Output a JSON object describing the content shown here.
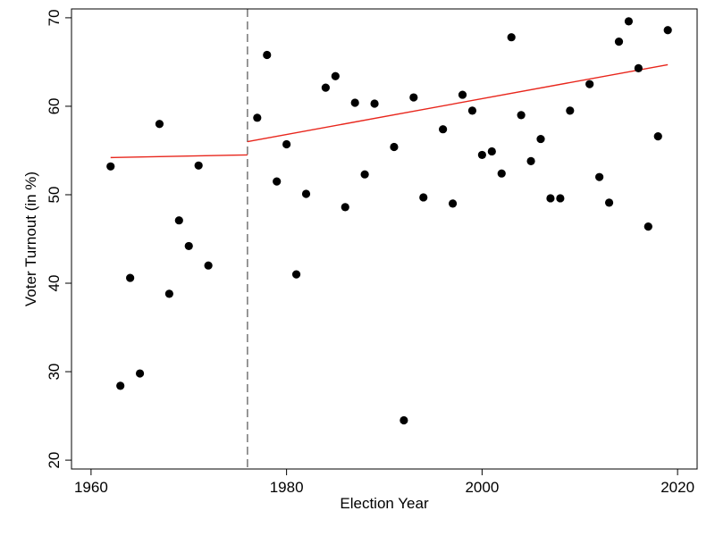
{
  "chart_data": {
    "type": "scatter",
    "title": "",
    "xlabel": "Election Year",
    "ylabel": "Voter Turnout (in %)",
    "xlim": [
      1958,
      2022
    ],
    "ylim": [
      19,
      71
    ],
    "xticks": [
      1960,
      1980,
      2000,
      2020
    ],
    "yticks": [
      20,
      30,
      40,
      50,
      60,
      70
    ],
    "grid": false,
    "legend": "none",
    "cutoff_year": 1976,
    "colors": {
      "points": "#000000",
      "fit": "#e8261c",
      "cutoff": "#7f7f7f",
      "frame": "#000000"
    },
    "points": [
      {
        "x": 1962,
        "y": 53.2
      },
      {
        "x": 1963,
        "y": 28.4
      },
      {
        "x": 1964,
        "y": 40.6
      },
      {
        "x": 1965,
        "y": 29.8
      },
      {
        "x": 1967,
        "y": 58.0
      },
      {
        "x": 1968,
        "y": 38.8
      },
      {
        "x": 1969,
        "y": 47.1
      },
      {
        "x": 1970,
        "y": 44.2
      },
      {
        "x": 1971,
        "y": 53.3
      },
      {
        "x": 1972,
        "y": 42.0
      },
      {
        "x": 1977,
        "y": 58.7
      },
      {
        "x": 1978,
        "y": 65.8
      },
      {
        "x": 1979,
        "y": 51.5
      },
      {
        "x": 1980,
        "y": 55.7
      },
      {
        "x": 1981,
        "y": 41.0
      },
      {
        "x": 1982,
        "y": 50.1
      },
      {
        "x": 1984,
        "y": 62.1
      },
      {
        "x": 1985,
        "y": 63.4
      },
      {
        "x": 1986,
        "y": 48.6
      },
      {
        "x": 1987,
        "y": 60.4
      },
      {
        "x": 1988,
        "y": 52.3
      },
      {
        "x": 1989,
        "y": 60.3
      },
      {
        "x": 1991,
        "y": 55.4
      },
      {
        "x": 1992,
        "y": 24.5
      },
      {
        "x": 1993,
        "y": 61.0
      },
      {
        "x": 1994,
        "y": 49.7
      },
      {
        "x": 1996,
        "y": 57.4
      },
      {
        "x": 1997,
        "y": 49.0
      },
      {
        "x": 1998,
        "y": 61.3
      },
      {
        "x": 1999,
        "y": 59.5
      },
      {
        "x": 2000,
        "y": 54.5
      },
      {
        "x": 2001,
        "y": 54.9
      },
      {
        "x": 2002,
        "y": 52.4
      },
      {
        "x": 2003,
        "y": 67.8
      },
      {
        "x": 2004,
        "y": 59.0
      },
      {
        "x": 2005,
        "y": 53.8
      },
      {
        "x": 2006,
        "y": 56.3
      },
      {
        "x": 2007,
        "y": 49.6
      },
      {
        "x": 2008,
        "y": 49.6
      },
      {
        "x": 2009,
        "y": 59.5
      },
      {
        "x": 2011,
        "y": 62.5
      },
      {
        "x": 2012,
        "y": 52.0
      },
      {
        "x": 2013,
        "y": 49.1
      },
      {
        "x": 2014,
        "y": 67.3
      },
      {
        "x": 2015,
        "y": 69.6
      },
      {
        "x": 2016,
        "y": 64.3
      },
      {
        "x": 2017,
        "y": 46.4
      },
      {
        "x": 2018,
        "y": 56.6
      },
      {
        "x": 2019,
        "y": 68.6
      }
    ],
    "fit_lines": [
      {
        "x": [
          1962,
          1976
        ],
        "y": [
          54.2,
          54.5
        ]
      },
      {
        "x": [
          1976,
          2019
        ],
        "y": [
          56.0,
          64.7
        ]
      }
    ]
  }
}
